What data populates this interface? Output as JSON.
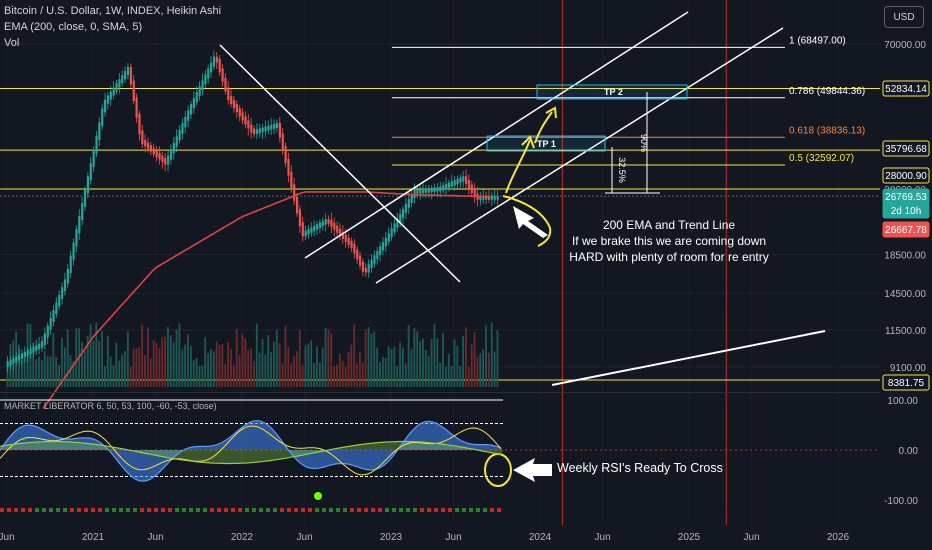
{
  "header": {
    "symbol_line": "Bitcoin / U.S. Dollar, 1W, INDEX, Heikin Ashi",
    "ema_line": "EMA (200, close, 0, SMA, 5)",
    "vol_line": "Vol",
    "currency_button": "USD"
  },
  "colors": {
    "background": "#131722",
    "bull": "#26a69a",
    "bear": "#ef5350",
    "ema": "#e0443f",
    "yellow": "#f7e53b",
    "fib_orange": "#f0883e",
    "tp_box": "#29b6f6",
    "red_vline": "#c62828"
  },
  "chart_data": {
    "type": "candlestick",
    "title": "Bitcoin / U.S. Dollar, 1W, INDEX, Heikin Ashi",
    "y_scale": "log",
    "ylim": [
      7000,
      90000
    ],
    "x_tick_labels": [
      "Jun",
      "2021",
      "Jun",
      "2022",
      "Jun",
      "2023",
      "Jun",
      "2024",
      "Jun",
      "2025",
      "Jun",
      "2026"
    ],
    "y_tick_labels": [
      "70000.00",
      "28000.00",
      "18500.00",
      "14500.00",
      "11500.00",
      "9100.00"
    ],
    "price_series": {
      "comment_free": true,
      "dates": [
        "2020-06",
        "2020-09",
        "2020-11",
        "2021-01",
        "2021-02",
        "2021-04",
        "2021-05",
        "2021-07",
        "2021-09",
        "2021-11",
        "2021-12",
        "2022-02",
        "2022-04",
        "2022-06",
        "2022-08",
        "2022-10",
        "2022-11",
        "2023-01",
        "2023-03",
        "2023-05",
        "2023-07",
        "2023-08",
        "2023-09"
      ],
      "values": [
        9200,
        10500,
        16000,
        33000,
        48000,
        60000,
        38000,
        33000,
        47000,
        65000,
        50000,
        40000,
        42000,
        21000,
        23000,
        19500,
        16500,
        21000,
        27500,
        28000,
        30000,
        26500,
        26500
      ]
    },
    "ema200": {
      "dates": [
        "2020-09",
        "2021-01",
        "2021-06",
        "2022-01",
        "2022-06",
        "2022-11",
        "2023-03",
        "2023-09"
      ],
      "values": [
        7000,
        11000,
        17000,
        23500,
        27500,
        27500,
        27000,
        26700
      ]
    },
    "fib_levels": [
      {
        "label": "1 (68497.00)",
        "value": 68497
      },
      {
        "label": "0.786 (49844.36)",
        "value": 49844.36
      },
      {
        "label": "0.618 (38836.13)",
        "value": 38836.13
      },
      {
        "label": "0.5 (32592.07)",
        "value": 32592.07
      }
    ],
    "price_tags": [
      {
        "label": "52834.14",
        "value": 52834.14,
        "style": "yellow"
      },
      {
        "label": "35796.68",
        "value": 35796.68,
        "style": "yellow"
      },
      {
        "label": "28000.90",
        "value": 28000.9,
        "style": "yellow"
      },
      {
        "label": "26769.53",
        "value": 26769.53,
        "style": "green"
      },
      {
        "label": "2d 10h",
        "style": "green"
      },
      {
        "label": "26667.78",
        "value": 26667.78,
        "style": "red"
      },
      {
        "label": "8381.75",
        "value": 8381.75,
        "style": "yellow"
      }
    ],
    "targets": [
      {
        "label": "TP 1"
      },
      {
        "label": "TP 2"
      }
    ],
    "measurements": [
      "32.5%",
      "90%"
    ],
    "annotations": [
      "200 EMA and Trend Line",
      "If we brake this we are coming down",
      "HARD with plenty of room for re entry",
      "Weekly RSI's Ready To Cross"
    ],
    "oscillator": {
      "title": "MARKET LIBERATOR 6, 50, 53, 100, -60, -53, close)",
      "y_tick_labels": [
        "100.00",
        "0.00",
        "-100.00"
      ],
      "ylim": [
        -120,
        120
      ],
      "levels": [
        100,
        53,
        0,
        -53
      ]
    }
  }
}
